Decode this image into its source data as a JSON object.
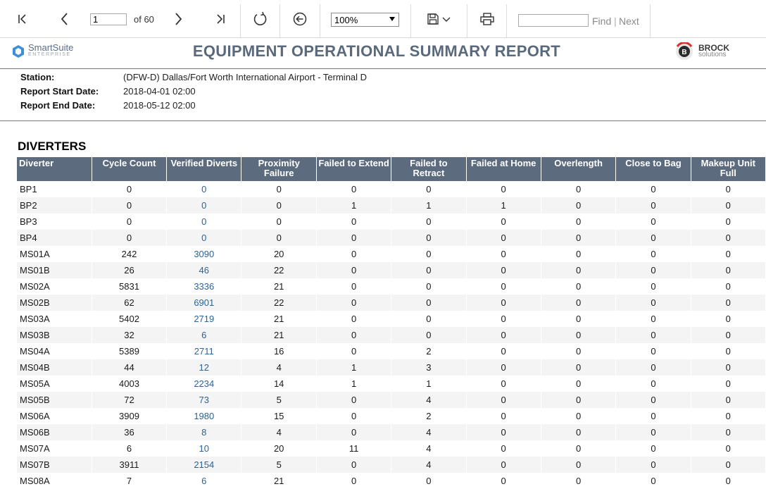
{
  "toolbar": {
    "page_number": "1",
    "page_of": "of 60",
    "zoom": "100%",
    "find_label": "Find",
    "find_separator": "|",
    "next_label": "Next",
    "icons": [
      "first-page-icon",
      "prev-page-icon",
      "next-page-icon",
      "last-page-icon",
      "refresh-icon",
      "back-icon",
      "save-icon",
      "chevron-down-icon",
      "print-icon"
    ]
  },
  "header": {
    "logo_left_name": "SmartSuite",
    "logo_left_sub": "ENTERPRISE",
    "title": "EQUIPMENT OPERATIONAL SUMMARY REPORT",
    "logo_right_mark": "B",
    "logo_right_name": "BROCK",
    "logo_right_sub": "solutions"
  },
  "info": {
    "station_label": "Station:",
    "station_value": "(DFW-D) Dallas/Fort Worth International Airport - Terminal D",
    "start_label": "Report Start Date:",
    "start_value": "2018-04-01 02:00",
    "end_label": "Report End Date:",
    "end_value": "2018-05-12 02:00"
  },
  "section": {
    "title": "DIVERTERS",
    "columns": [
      "Diverter",
      "Cycle Count",
      "Verified Diverts",
      "Proximity Failure",
      "Failed to Extend",
      "Failed to Retract",
      "Failed at Home",
      "Overlength",
      "Close to Bag",
      "Makeup Unit Full"
    ],
    "rows": [
      [
        "BP1",
        "0",
        "0",
        "0",
        "0",
        "0",
        "0",
        "0",
        "0",
        "0"
      ],
      [
        "BP2",
        "0",
        "0",
        "0",
        "1",
        "1",
        "1",
        "0",
        "0",
        "0"
      ],
      [
        "BP3",
        "0",
        "0",
        "0",
        "0",
        "0",
        "0",
        "0",
        "0",
        "0"
      ],
      [
        "BP4",
        "0",
        "0",
        "0",
        "0",
        "0",
        "0",
        "0",
        "0",
        "0"
      ],
      [
        "MS01A",
        "242",
        "3090",
        "20",
        "0",
        "0",
        "0",
        "0",
        "0",
        "0"
      ],
      [
        "MS01B",
        "26",
        "46",
        "22",
        "0",
        "0",
        "0",
        "0",
        "0",
        "0"
      ],
      [
        "MS02A",
        "5831",
        "3336",
        "21",
        "0",
        "0",
        "0",
        "0",
        "0",
        "0"
      ],
      [
        "MS02B",
        "62",
        "6901",
        "22",
        "0",
        "0",
        "0",
        "0",
        "0",
        "0"
      ],
      [
        "MS03A",
        "5402",
        "2719",
        "21",
        "0",
        "0",
        "0",
        "0",
        "0",
        "0"
      ],
      [
        "MS03B",
        "32",
        "6",
        "21",
        "0",
        "0",
        "0",
        "0",
        "0",
        "0"
      ],
      [
        "MS04A",
        "5389",
        "2711",
        "16",
        "0",
        "2",
        "0",
        "0",
        "0",
        "0"
      ],
      [
        "MS04B",
        "44",
        "12",
        "4",
        "1",
        "3",
        "0",
        "0",
        "0",
        "0"
      ],
      [
        "MS05A",
        "4003",
        "2234",
        "14",
        "1",
        "1",
        "0",
        "0",
        "0",
        "0"
      ],
      [
        "MS05B",
        "72",
        "73",
        "5",
        "0",
        "4",
        "0",
        "0",
        "0",
        "0"
      ],
      [
        "MS06A",
        "3909",
        "1980",
        "15",
        "0",
        "2",
        "0",
        "0",
        "0",
        "0"
      ],
      [
        "MS06B",
        "36",
        "8",
        "4",
        "0",
        "4",
        "0",
        "0",
        "0",
        "0"
      ],
      [
        "MS07A",
        "6",
        "10",
        "20",
        "11",
        "4",
        "0",
        "0",
        "0",
        "0"
      ],
      [
        "MS07B",
        "3911",
        "2154",
        "5",
        "0",
        "4",
        "0",
        "0",
        "0",
        "0"
      ],
      [
        "MS08A",
        "7",
        "6",
        "21",
        "0",
        "0",
        "0",
        "0",
        "0",
        "0"
      ]
    ]
  }
}
